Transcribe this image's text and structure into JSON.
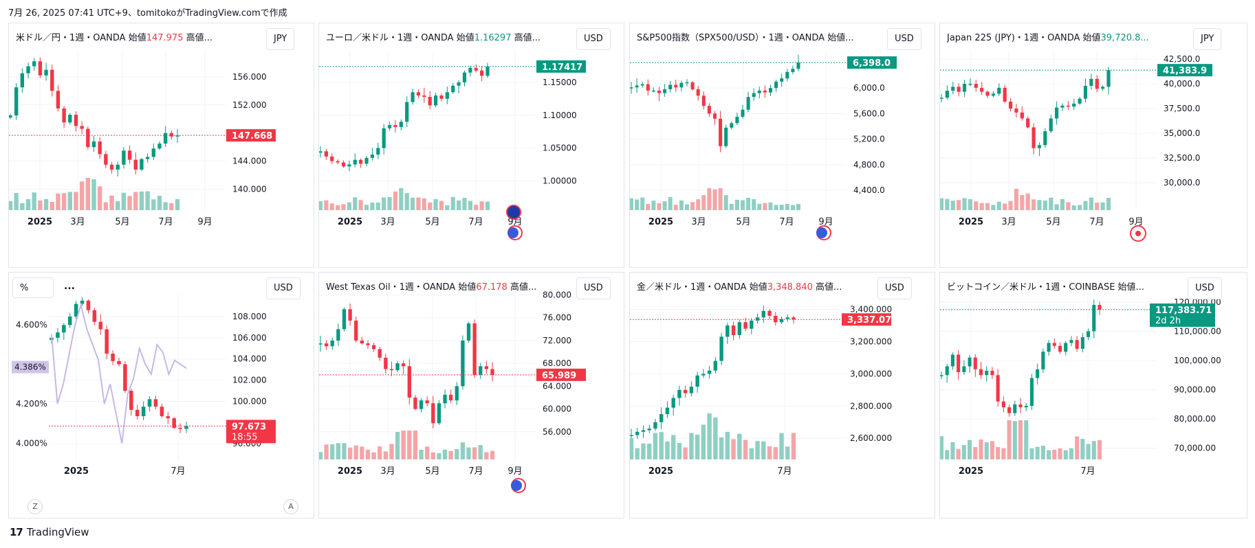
{
  "caption": "7月 26, 2025 07:41 UTC+9、tomitokoがTradingView.comで作成",
  "brand": {
    "logo": "17",
    "name": "TradingView"
  },
  "colors": {
    "up": "#089981",
    "down": "#f23645",
    "up_vol": "#8fcfc3",
    "down_vol": "#f4a5a7",
    "grid": "#f0f3fa",
    "axis_text": "#131722",
    "line_series": "#c7b8e6"
  },
  "panels": [
    {
      "id": "usdjpy",
      "title_prefix": "米ドル／円・1週・OANDA  始値",
      "open_value": "147.975",
      "open_up": false,
      "title_suffix": "  高値...",
      "currency": "JPY",
      "chart_data": {
        "type": "candlestick",
        "y_ticks": [
          "156.000",
          "152.000",
          "144.000",
          "140.000"
        ],
        "y_range": [
          138.4,
          159.5
        ],
        "x_labels": [
          "2025",
          "3月",
          "5月",
          "7月",
          "9月"
        ],
        "last_price": "147.668",
        "last_color": "down",
        "trend": [
          150.5,
          154.5,
          156.5,
          157.5,
          158.2,
          156.2,
          157.0,
          154.0,
          151.5,
          149.5,
          150.6,
          149.0,
          148.6,
          146.0,
          146.8,
          145.0,
          143.5,
          142.8,
          143.5,
          145.5,
          144.2,
          142.8,
          144.3,
          144.6,
          145.8,
          146.5,
          148.0,
          147.5,
          147.668
        ]
      }
    },
    {
      "id": "eurusd",
      "title_prefix": "ユーロ／米ドル・1週・OANDA  始値",
      "open_value": "1.16297",
      "open_up": true,
      "title_suffix": "  高値...",
      "currency": "USD",
      "chart_data": {
        "type": "candlestick",
        "y_ticks": [
          "1.15000",
          "1.10000",
          "1.05000",
          "1.00000"
        ],
        "y_range": [
          0.97,
          1.196
        ],
        "x_labels": [
          "2025",
          "3月",
          "5月",
          "7月",
          "9月"
        ],
        "last_price": "1.17417",
        "last_color": "up",
        "trend": [
          1.045,
          1.037,
          1.03,
          1.028,
          1.022,
          1.025,
          1.032,
          1.026,
          1.035,
          1.04,
          1.05,
          1.08,
          1.085,
          1.082,
          1.09,
          1.12,
          1.135,
          1.13,
          1.128,
          1.115,
          1.13,
          1.125,
          1.135,
          1.145,
          1.15,
          1.165,
          1.172,
          1.168,
          1.16,
          1.17417
        ]
      }
    },
    {
      "id": "spx",
      "title_prefix": "S&P500指数（SPX500/USD）・1週・OANDA  始値...",
      "open_value": "",
      "open_up": true,
      "title_suffix": "",
      "currency": "USD",
      "chart_data": {
        "type": "candlestick",
        "y_ticks": [
          "6,000.0",
          "5,600.0",
          "5,200.0",
          "4,800.0",
          "4,400.0"
        ],
        "y_range": [
          4240,
          6560
        ],
        "x_labels": [
          "2025",
          "3月",
          "5月",
          "7月",
          "9月"
        ],
        "last_price": "6,398.0",
        "last_color": "up",
        "trend": [
          6010,
          6040,
          6060,
          5960,
          5960,
          5920,
          5980,
          6050,
          6010,
          6080,
          6090,
          5980,
          5880,
          5720,
          5600,
          5520,
          5090,
          5380,
          5450,
          5550,
          5660,
          5860,
          5920,
          5960,
          5930,
          6000,
          6100,
          6150,
          6250,
          6300,
          6398
        ]
      }
    },
    {
      "id": "nikkei",
      "title_prefix": "Japan 225 (JPY)・1週・OANDA  始値",
      "open_value": "39,720.8...",
      "open_up": true,
      "title_suffix": "",
      "currency": "JPY",
      "chart_data": {
        "type": "candlestick",
        "y_ticks": [
          "42,500.0",
          "40,000.0",
          "37,500.0",
          "35,000.0",
          "32,500.0",
          "30,000.0"
        ],
        "y_range": [
          28200,
          43200
        ],
        "x_labels": [
          "2025",
          "3月",
          "5月",
          "7月",
          "9月"
        ],
        "last_price": "41,383.9",
        "last_color": "up",
        "trend": [
          38600,
          39300,
          39700,
          39200,
          40000,
          40000,
          39600,
          39200,
          38800,
          39000,
          39600,
          38200,
          37500,
          37100,
          36500,
          35600,
          33500,
          33800,
          35200,
          36500,
          37600,
          37800,
          37700,
          38000,
          38500,
          39800,
          40500,
          39500,
          39700,
          41383
        ]
      }
    },
    {
      "id": "bond",
      "title_prefix": "",
      "open_value": "",
      "open_up": true,
      "title_suffix": "",
      "currency": "USD",
      "pct_label": "%",
      "dots": "...",
      "side_value": "4.386%",
      "left_ticks": [
        "4.600%",
        "4.200%",
        "4.000%"
      ],
      "left_range": [
        3.96,
        4.76
      ],
      "z_label": "Z",
      "a_label": "A",
      "timer": "18:55",
      "chart_data": {
        "type": "candlestick",
        "y_ticks": [
          "108.000",
          "106.000",
          "104.000",
          "102.000",
          "100.000",
          "96.000"
        ],
        "y_range": [
          95.3,
          110.2
        ],
        "x_labels": [
          "2025",
          "7月"
        ],
        "last_price": "97.673",
        "last_color": "down",
        "trend": [
          106.0,
          106.5,
          107.2,
          108.0,
          109.2,
          109.5,
          108.6,
          107.5,
          106.8,
          104.5,
          103.8,
          103.5,
          101.0,
          99.2,
          98.6,
          99.5,
          100.2,
          99.5,
          98.6,
          98.4,
          97.5,
          97.4,
          97.673
        ],
        "line_series": [
          4.55,
          4.2,
          4.3,
          4.45,
          4.6,
          4.7,
          4.58,
          4.5,
          4.42,
          4.2,
          4.3,
          4.15,
          4.0,
          4.25,
          4.33,
          4.48,
          4.4,
          4.35,
          4.5,
          4.46,
          4.35,
          4.42,
          4.4,
          4.38
        ]
      }
    },
    {
      "id": "wti",
      "title_prefix": "West Texas Oil・1週・OANDA  始値",
      "open_value": "67.178",
      "open_up": false,
      "title_suffix": "  高値...",
      "currency": "USD",
      "chart_data": {
        "type": "candlestick",
        "y_ticks": [
          "80.000",
          "76.000",
          "72.000",
          "68.000",
          "64.000",
          "60.000",
          "56.000"
        ],
        "y_range": [
          52.6,
          80.3
        ],
        "x_labels": [
          "2025",
          "3月",
          "5月",
          "7月",
          "9月"
        ],
        "last_price": "65.989",
        "last_color": "down",
        "trend": [
          71.5,
          71.0,
          72.0,
          74.0,
          77.5,
          75.5,
          72.0,
          71.5,
          71.2,
          70.5,
          69.0,
          67.0,
          66.8,
          68.0,
          67.5,
          62.0,
          60.0,
          61.5,
          61.0,
          57.5,
          61.0,
          62.5,
          61.5,
          64.0,
          72.0,
          75.0,
          66.0,
          67.5,
          67.0,
          65.989
        ]
      }
    },
    {
      "id": "xauusd",
      "title_prefix": "金／米ドル・1週・OANDA  始値",
      "open_value": "3,348.840",
      "open_up": false,
      "title_suffix": "  高値...",
      "currency": "USD",
      "chart_data": {
        "type": "candlestick",
        "y_ticks": [
          "3,400.000",
          "3,200.000",
          "3,000.000",
          "2,800.000",
          "2,600.000"
        ],
        "y_range": [
          2520,
          3500
        ],
        "x_labels": [
          "2025",
          "7月"
        ],
        "last_price": "3,337.070",
        "last_color": "down",
        "trend": [
          2620,
          2640,
          2650,
          2660,
          2700,
          2750,
          2790,
          2850,
          2900,
          2880,
          2920,
          2990,
          3000,
          3020,
          3080,
          3230,
          3300,
          3240,
          3320,
          3280,
          3330,
          3350,
          3390,
          3360,
          3320,
          3340,
          3350,
          3337
        ]
      }
    },
    {
      "id": "btcusd",
      "title_prefix": "ビットコイン／米ドル・1週・COINBASE  始値...",
      "open_value": "",
      "open_up": true,
      "title_suffix": "",
      "currency": "USD",
      "timer": "2d 2h",
      "chart_data": {
        "type": "candlestick",
        "y_ticks": [
          "120,000.00",
          "110,000.00",
          "100,000.00",
          "90,000.00",
          "80,000.00",
          "70,000.00"
        ],
        "y_range": [
          69000,
          123000
        ],
        "x_labels": [
          "2025",
          "7月"
        ],
        "last_price": "117,383.71",
        "last_color": "up",
        "trend": [
          95000,
          98000,
          102000,
          96000,
          98000,
          101000,
          97000,
          95000,
          96500,
          95000,
          86000,
          84000,
          82000,
          85000,
          84000,
          84500,
          94000,
          97000,
          103000,
          106000,
          105000,
          103000,
          106000,
          107000,
          104000,
          108000,
          110000,
          119000,
          117383
        ]
      }
    }
  ]
}
